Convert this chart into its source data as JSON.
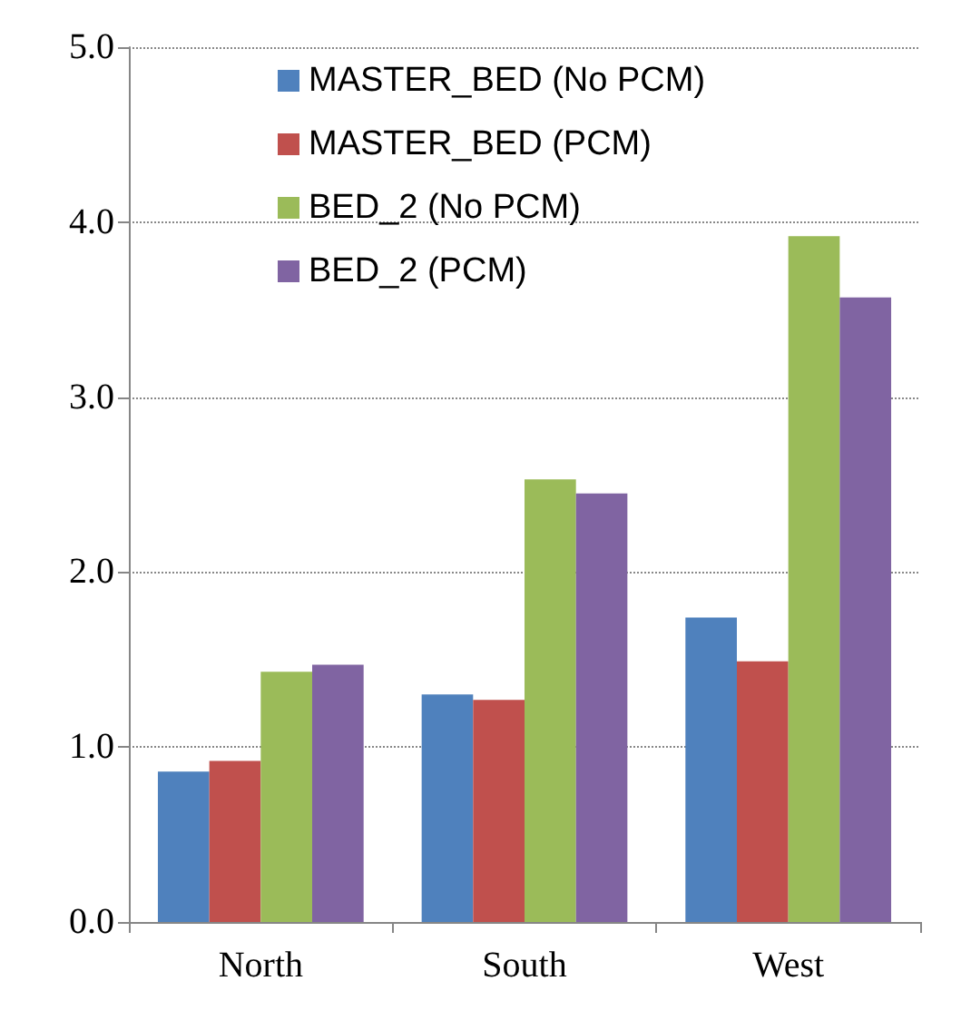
{
  "chart_data": {
    "type": "bar",
    "categories": [
      "North",
      "South",
      "West"
    ],
    "series": [
      {
        "name": "MASTER_BED (No PCM)",
        "color": "#4f81bd",
        "values": [
          0.86,
          1.3,
          1.74
        ]
      },
      {
        "name": "MASTER_BED (PCM)",
        "color": "#c0504d",
        "values": [
          0.92,
          1.27,
          1.49
        ]
      },
      {
        "name": "BED_2 (No PCM)",
        "color": "#9bbb59",
        "values": [
          1.43,
          2.53,
          3.92
        ]
      },
      {
        "name": "BED_2 (PCM)",
        "color": "#8064a2",
        "values": [
          1.47,
          2.45,
          3.57
        ]
      }
    ],
    "ylim": [
      0,
      5
    ],
    "yticks": [
      {
        "value": 0,
        "label": "0.0"
      },
      {
        "value": 1,
        "label": "1.0"
      },
      {
        "value": 2,
        "label": "2.0"
      },
      {
        "value": 3,
        "label": "3.0"
      },
      {
        "value": 4,
        "label": "4.0"
      },
      {
        "value": 5,
        "label": "5.0"
      }
    ],
    "grid": "y",
    "legend": "top"
  }
}
